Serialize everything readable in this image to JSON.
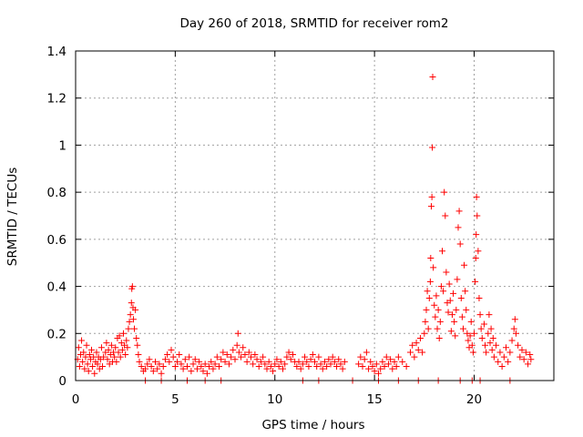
{
  "chart_data": {
    "type": "scatter",
    "title": "Day 260 of 2018, SRMTID for receiver rom2",
    "xlabel": "GPS time / hours",
    "ylabel": "SRMTID / TECUs",
    "xlim": [
      0,
      24
    ],
    "ylim": [
      0,
      1.4
    ],
    "grid": true,
    "marker": "+",
    "marker_color": "#ff0000",
    "xticks": [
      0,
      5,
      10,
      15,
      20
    ],
    "xtick_labels": [
      "0",
      "5",
      "10",
      "15",
      "20"
    ],
    "yticks": [
      0,
      0.2,
      0.4,
      0.6,
      0.8,
      1.0,
      1.2,
      1.4
    ],
    "ytick_labels": [
      "0",
      "0.2",
      "0.4",
      "0.6",
      "0.8",
      "1",
      "1.2",
      "1.4"
    ],
    "series": [
      {
        "name": "rom2",
        "points": [
          [
            0.1,
            0.09
          ],
          [
            0.15,
            0.14
          ],
          [
            0.2,
            0.06
          ],
          [
            0.25,
            0.11
          ],
          [
            0.3,
            0.17
          ],
          [
            0.35,
            0.08
          ],
          [
            0.4,
            0.12
          ],
          [
            0.45,
            0.05
          ],
          [
            0.5,
            0.1
          ],
          [
            0.55,
            0.15
          ],
          [
            0.6,
            0.07
          ],
          [
            0.65,
            0.04
          ],
          [
            0.7,
            0.11
          ],
          [
            0.75,
            0.09
          ],
          [
            0.8,
            0.13
          ],
          [
            0.85,
            0.06
          ],
          [
            0.9,
            0.1
          ],
          [
            0.95,
            0.03
          ],
          [
            1.0,
            0.08
          ],
          [
            1.05,
            0.12
          ],
          [
            1.1,
            0.07
          ],
          [
            1.15,
            0.1
          ],
          [
            1.2,
            0.05
          ],
          [
            1.25,
            0.09
          ],
          [
            1.3,
            0.14
          ],
          [
            1.35,
            0.06
          ],
          [
            1.4,
            0.1
          ],
          [
            1.5,
            0.12
          ],
          [
            1.55,
            0.16
          ],
          [
            1.6,
            0.09
          ],
          [
            1.65,
            0.13
          ],
          [
            1.7,
            0.07
          ],
          [
            1.75,
            0.11
          ],
          [
            1.8,
            0.15
          ],
          [
            1.85,
            0.08
          ],
          [
            1.9,
            0.12
          ],
          [
            1.95,
            0.1
          ],
          [
            2.0,
            0.14
          ],
          [
            2.05,
            0.08
          ],
          [
            2.1,
            0.18
          ],
          [
            2.15,
            0.12
          ],
          [
            2.2,
            0.19
          ],
          [
            2.25,
            0.1
          ],
          [
            2.3,
            0.16
          ],
          [
            2.35,
            0.13
          ],
          [
            2.4,
            0.2
          ],
          [
            2.45,
            0.15
          ],
          [
            2.5,
            0.11
          ],
          [
            2.55,
            0.17
          ],
          [
            2.6,
            0.14
          ],
          [
            2.65,
            0.22
          ],
          [
            2.7,
            0.25
          ],
          [
            2.75,
            0.28
          ],
          [
            2.8,
            0.33
          ],
          [
            2.82,
            0.39
          ],
          [
            2.85,
            0.4
          ],
          [
            2.88,
            0.31
          ],
          [
            2.9,
            0.26
          ],
          [
            2.95,
            0.22
          ],
          [
            3.0,
            0.3
          ],
          [
            3.05,
            0.18
          ],
          [
            3.1,
            0.15
          ],
          [
            3.15,
            0.11
          ],
          [
            3.2,
            0.08
          ],
          [
            3.3,
            0.06
          ],
          [
            3.4,
            0.04
          ],
          [
            3.5,
            0.05
          ],
          [
            3.6,
            0.07
          ],
          [
            3.7,
            0.09
          ],
          [
            3.8,
            0.06
          ],
          [
            3.9,
            0.04
          ],
          [
            4.0,
            0.08
          ],
          [
            4.1,
            0.05
          ],
          [
            4.2,
            0.07
          ],
          [
            4.3,
            0.03
          ],
          [
            4.4,
            0.06
          ],
          [
            4.5,
            0.09
          ],
          [
            4.6,
            0.11
          ],
          [
            4.7,
            0.08
          ],
          [
            4.8,
            0.13
          ],
          [
            4.9,
            0.1
          ],
          [
            5.0,
            0.06
          ],
          [
            5.1,
            0.08
          ],
          [
            5.2,
            0.11
          ],
          [
            5.3,
            0.07
          ],
          [
            5.4,
            0.05
          ],
          [
            5.5,
            0.09
          ],
          [
            5.6,
            0.06
          ],
          [
            5.7,
            0.1
          ],
          [
            5.8,
            0.04
          ],
          [
            5.9,
            0.07
          ],
          [
            6.0,
            0.09
          ],
          [
            6.1,
            0.05
          ],
          [
            6.2,
            0.08
          ],
          [
            6.3,
            0.06
          ],
          [
            6.4,
            0.04
          ],
          [
            6.5,
            0.07
          ],
          [
            6.6,
            0.03
          ],
          [
            6.7,
            0.06
          ],
          [
            6.8,
            0.08
          ],
          [
            6.9,
            0.05
          ],
          [
            7.0,
            0.07
          ],
          [
            7.1,
            0.1
          ],
          [
            7.2,
            0.06
          ],
          [
            7.3,
            0.09
          ],
          [
            7.4,
            0.12
          ],
          [
            7.5,
            0.08
          ],
          [
            7.6,
            0.11
          ],
          [
            7.7,
            0.07
          ],
          [
            7.8,
            0.1
          ],
          [
            7.9,
            0.13
          ],
          [
            8.0,
            0.09
          ],
          [
            8.1,
            0.15
          ],
          [
            8.15,
            0.2
          ],
          [
            8.2,
            0.12
          ],
          [
            8.3,
            0.1
          ],
          [
            8.4,
            0.14
          ],
          [
            8.5,
            0.11
          ],
          [
            8.6,
            0.08
          ],
          [
            8.7,
            0.12
          ],
          [
            8.8,
            0.1
          ],
          [
            8.9,
            0.07
          ],
          [
            9.0,
            0.11
          ],
          [
            9.1,
            0.09
          ],
          [
            9.2,
            0.06
          ],
          [
            9.3,
            0.08
          ],
          [
            9.4,
            0.1
          ],
          [
            9.5,
            0.07
          ],
          [
            9.6,
            0.05
          ],
          [
            9.7,
            0.08
          ],
          [
            9.8,
            0.06
          ],
          [
            9.9,
            0.04
          ],
          [
            10.0,
            0.07
          ],
          [
            10.1,
            0.09
          ],
          [
            10.2,
            0.06
          ],
          [
            10.3,
            0.08
          ],
          [
            10.4,
            0.05
          ],
          [
            10.5,
            0.07
          ],
          [
            10.6,
            0.1
          ],
          [
            10.7,
            0.12
          ],
          [
            10.8,
            0.09
          ],
          [
            10.9,
            0.11
          ],
          [
            11.0,
            0.08
          ],
          [
            11.1,
            0.06
          ],
          [
            11.2,
            0.08
          ],
          [
            11.3,
            0.05
          ],
          [
            11.4,
            0.07
          ],
          [
            11.5,
            0.1
          ],
          [
            11.6,
            0.08
          ],
          [
            11.7,
            0.06
          ],
          [
            11.8,
            0.09
          ],
          [
            11.9,
            0.11
          ],
          [
            12.0,
            0.08
          ],
          [
            12.1,
            0.06
          ],
          [
            12.2,
            0.1
          ],
          [
            12.3,
            0.07
          ],
          [
            12.4,
            0.05
          ],
          [
            12.5,
            0.08
          ],
          [
            12.6,
            0.06
          ],
          [
            12.7,
            0.09
          ],
          [
            12.8,
            0.07
          ],
          [
            12.9,
            0.1
          ],
          [
            13.0,
            0.08
          ],
          [
            13.1,
            0.06
          ],
          [
            13.2,
            0.09
          ],
          [
            13.3,
            0.07
          ],
          [
            13.4,
            0.05
          ],
          [
            13.5,
            0.08
          ],
          [
            14.2,
            0.07
          ],
          [
            14.3,
            0.1
          ],
          [
            14.4,
            0.06
          ],
          [
            14.5,
            0.09
          ],
          [
            14.6,
            0.12
          ],
          [
            14.7,
            0.05
          ],
          [
            14.8,
            0.08
          ],
          [
            14.9,
            0.06
          ],
          [
            15.0,
            0.04
          ],
          [
            15.1,
            0.07
          ],
          [
            15.2,
            0.03
          ],
          [
            15.3,
            0.05
          ],
          [
            15.4,
            0.08
          ],
          [
            15.5,
            0.06
          ],
          [
            15.6,
            0.1
          ],
          [
            15.7,
            0.07
          ],
          [
            15.8,
            0.09
          ],
          [
            15.9,
            0.05
          ],
          [
            16.0,
            0.08
          ],
          [
            16.1,
            0.06
          ],
          [
            16.2,
            0.1
          ],
          [
            16.4,
            0.08
          ],
          [
            16.6,
            0.06
          ],
          [
            16.8,
            0.12
          ],
          [
            16.9,
            0.15
          ],
          [
            17.0,
            0.1
          ],
          [
            17.1,
            0.16
          ],
          [
            17.2,
            0.13
          ],
          [
            17.3,
            0.18
          ],
          [
            17.4,
            0.12
          ],
          [
            17.5,
            0.2
          ],
          [
            17.55,
            0.25
          ],
          [
            17.6,
            0.3
          ],
          [
            17.65,
            0.38
          ],
          [
            17.7,
            0.22
          ],
          [
            17.75,
            0.35
          ],
          [
            17.8,
            0.42
          ],
          [
            17.82,
            0.52
          ],
          [
            17.85,
            0.74
          ],
          [
            17.88,
            0.78
          ],
          [
            17.9,
            0.99
          ],
          [
            17.92,
            1.29
          ],
          [
            17.95,
            0.48
          ],
          [
            18.0,
            0.32
          ],
          [
            18.05,
            0.27
          ],
          [
            18.1,
            0.36
          ],
          [
            18.15,
            0.22
          ],
          [
            18.2,
            0.3
          ],
          [
            18.25,
            0.18
          ],
          [
            18.3,
            0.25
          ],
          [
            18.35,
            0.4
          ],
          [
            18.4,
            0.55
          ],
          [
            18.45,
            0.38
          ],
          [
            18.5,
            0.8
          ],
          [
            18.55,
            0.7
          ],
          [
            18.6,
            0.46
          ],
          [
            18.65,
            0.33
          ],
          [
            18.7,
            0.29
          ],
          [
            18.75,
            0.41
          ],
          [
            18.8,
            0.34
          ],
          [
            18.85,
            0.21
          ],
          [
            18.9,
            0.28
          ],
          [
            18.95,
            0.37
          ],
          [
            19.0,
            0.25
          ],
          [
            19.05,
            0.19
          ],
          [
            19.1,
            0.3
          ],
          [
            19.15,
            0.43
          ],
          [
            19.2,
            0.65
          ],
          [
            19.25,
            0.72
          ],
          [
            19.3,
            0.58
          ],
          [
            19.35,
            0.35
          ],
          [
            19.4,
            0.27
          ],
          [
            19.45,
            0.22
          ],
          [
            19.5,
            0.49
          ],
          [
            19.55,
            0.38
          ],
          [
            19.6,
            0.3
          ],
          [
            19.65,
            0.2
          ],
          [
            19.7,
            0.17
          ],
          [
            19.75,
            0.14
          ],
          [
            19.8,
            0.19
          ],
          [
            19.85,
            0.25
          ],
          [
            19.9,
            0.15
          ],
          [
            19.95,
            0.12
          ],
          [
            20.0,
            0.2
          ],
          [
            20.05,
            0.42
          ],
          [
            20.08,
            0.52
          ],
          [
            20.1,
            0.62
          ],
          [
            20.12,
            0.78
          ],
          [
            20.15,
            0.7
          ],
          [
            20.2,
            0.55
          ],
          [
            20.25,
            0.35
          ],
          [
            20.3,
            0.28
          ],
          [
            20.35,
            0.22
          ],
          [
            20.4,
            0.18
          ],
          [
            20.5,
            0.24
          ],
          [
            20.55,
            0.15
          ],
          [
            20.6,
            0.12
          ],
          [
            20.7,
            0.2
          ],
          [
            20.75,
            0.28
          ],
          [
            20.8,
            0.16
          ],
          [
            20.85,
            0.22
          ],
          [
            20.9,
            0.13
          ],
          [
            20.95,
            0.18
          ],
          [
            21.0,
            0.1
          ],
          [
            21.1,
            0.15
          ],
          [
            21.2,
            0.08
          ],
          [
            21.3,
            0.12
          ],
          [
            21.4,
            0.06
          ],
          [
            21.5,
            0.1
          ],
          [
            21.6,
            0.14
          ],
          [
            21.7,
            0.08
          ],
          [
            21.8,
            0.12
          ],
          [
            21.9,
            0.17
          ],
          [
            22.0,
            0.22
          ],
          [
            22.05,
            0.26
          ],
          [
            22.1,
            0.2
          ],
          [
            22.2,
            0.15
          ],
          [
            22.3,
            0.1
          ],
          [
            22.4,
            0.13
          ],
          [
            22.5,
            0.09
          ],
          [
            22.6,
            0.12
          ],
          [
            22.7,
            0.07
          ],
          [
            22.8,
            0.11
          ],
          [
            22.85,
            0.09
          ],
          [
            3.5,
            0.0
          ],
          [
            4.3,
            0.0
          ],
          [
            5.6,
            0.0
          ],
          [
            6.5,
            0.0
          ],
          [
            7.3,
            0.0
          ],
          [
            11.4,
            0.0
          ],
          [
            12.2,
            0.0
          ],
          [
            13.9,
            0.0
          ],
          [
            15.2,
            0.0
          ],
          [
            16.2,
            0.0
          ],
          [
            17.2,
            0.0
          ],
          [
            18.2,
            0.0
          ],
          [
            19.3,
            0.0
          ],
          [
            19.9,
            0.0
          ],
          [
            20.3,
            0.0
          ],
          [
            21.8,
            0.0
          ]
        ]
      }
    ]
  }
}
